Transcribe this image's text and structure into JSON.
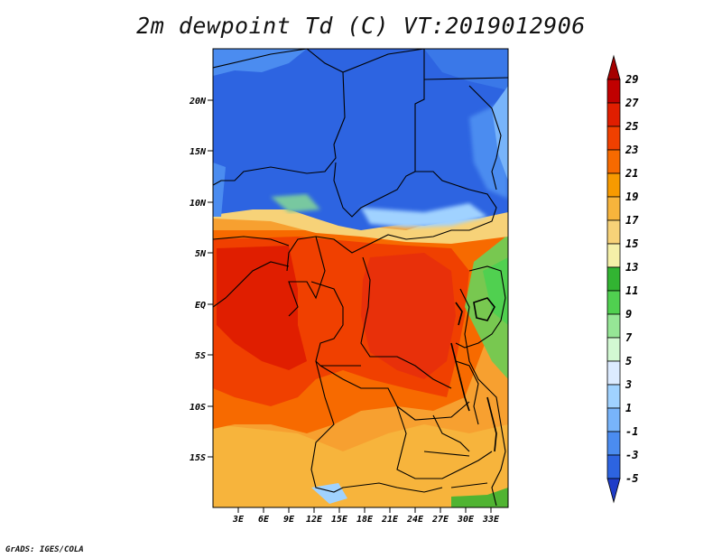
{
  "title": "2m dewpoint Td (C) VT:2019012906",
  "footer": "GrADS: IGES/COLA",
  "map": {
    "lat_labels": [
      "20N",
      "15N",
      "10N",
      "5N",
      "EQ",
      "5S",
      "10S",
      "15S"
    ],
    "lon_labels": [
      "3E",
      "6E",
      "9E",
      "12E",
      "15E",
      "18E",
      "21E",
      "24E",
      "27E",
      "30E",
      "33E"
    ]
  },
  "colorbar": {
    "labels": [
      "29",
      "27",
      "25",
      "23",
      "21",
      "19",
      "17",
      "15",
      "13",
      "11",
      "9",
      "7",
      "5",
      "3",
      "1",
      "-1",
      "-3",
      "-5"
    ],
    "colors": [
      "#a50000",
      "#c00000",
      "#e01e00",
      "#f04000",
      "#f76a00",
      "#f79a00",
      "#f7b43c",
      "#f7d278",
      "#f5f0a8",
      "#32b432",
      "#50d050",
      "#96e696",
      "#d2f8d2",
      "#dcebff",
      "#a0d2ff",
      "#78b4fa",
      "#4b8cf0",
      "#2d64e1",
      "#1e3cc8"
    ]
  }
}
